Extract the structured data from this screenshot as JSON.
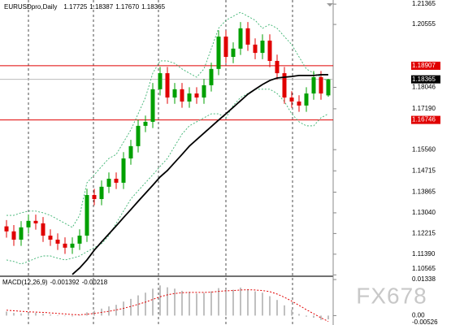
{
  "chart_data": [
    {
      "type": "candlestick",
      "title": "EURUSDpro,Daily",
      "header_low_label": "1.17670",
      "up_color": "#00a000",
      "down_color": "#e00000",
      "open": [
        1.125,
        1.123,
        1.1197,
        1.1246,
        1.1272,
        1.1262,
        1.1213,
        1.1197,
        1.1181,
        1.1165,
        1.1181,
        1.1213,
        1.1375,
        1.1359,
        1.1408,
        1.144,
        1.1424,
        1.1521,
        1.157,
        1.1651,
        1.1667,
        1.1797,
        1.1861,
        1.1764,
        1.1797,
        1.1748,
        1.178,
        1.1764,
        1.1813,
        1.1878,
        1.2007,
        1.1926,
        1.1959,
        1.204,
        1.1975,
        1.1942,
        1.1991,
        1.191,
        1.1861,
        1.1764,
        1.1748,
        1.1732,
        1.178,
        1.1845,
        1.17725
      ],
      "high": [
        1.1275,
        1.1255,
        1.1271,
        1.1297,
        1.1297,
        1.1287,
        1.1238,
        1.1222,
        1.1206,
        1.1206,
        1.1238,
        1.14,
        1.14,
        1.1433,
        1.1465,
        1.1465,
        1.1546,
        1.1595,
        1.1676,
        1.1692,
        1.1822,
        1.1886,
        1.1886,
        1.1822,
        1.1822,
        1.1805,
        1.1805,
        1.1838,
        1.1903,
        1.2032,
        1.2032,
        1.1984,
        1.2065,
        1.2065,
        1.2,
        1.2016,
        1.2016,
        1.1935,
        1.1886,
        1.1789,
        1.1773,
        1.1805,
        1.187,
        1.187,
        1.18387
      ],
      "low": [
        1.1205,
        1.1172,
        1.1172,
        1.1221,
        1.1237,
        1.1188,
        1.1172,
        1.1156,
        1.114,
        1.114,
        1.1156,
        1.1188,
        1.1334,
        1.1334,
        1.1383,
        1.1399,
        1.1399,
        1.1496,
        1.1545,
        1.1626,
        1.1642,
        1.1772,
        1.1739,
        1.1739,
        1.1723,
        1.1723,
        1.1739,
        1.1739,
        1.1788,
        1.1853,
        1.1901,
        1.1901,
        1.1934,
        1.195,
        1.1917,
        1.1917,
        1.1885,
        1.1836,
        1.1739,
        1.1723,
        1.1707,
        1.1707,
        1.1755,
        1.1755,
        1.1767
      ],
      "close": [
        1.123,
        1.1197,
        1.1246,
        1.1272,
        1.1262,
        1.1213,
        1.1197,
        1.1181,
        1.1165,
        1.1181,
        1.1213,
        1.1375,
        1.1359,
        1.1408,
        1.144,
        1.1424,
        1.1521,
        1.157,
        1.1651,
        1.1667,
        1.1797,
        1.1861,
        1.1764,
        1.1797,
        1.1748,
        1.178,
        1.1764,
        1.1813,
        1.1878,
        1.2007,
        1.1926,
        1.1959,
        1.204,
        1.1975,
        1.1942,
        1.1991,
        1.191,
        1.1861,
        1.1764,
        1.1748,
        1.1732,
        1.178,
        1.1845,
        1.178,
        1.18365
      ],
      "ma": [
        null,
        null,
        null,
        null,
        null,
        null,
        null,
        null,
        null,
        1.1058,
        1.1084,
        1.1116,
        1.1155,
        1.1188,
        1.122,
        1.1252,
        1.1285,
        1.1317,
        1.135,
        1.1382,
        1.1414,
        1.1447,
        1.1473,
        1.1505,
        1.1537,
        1.157,
        1.1596,
        1.1622,
        1.1648,
        1.1674,
        1.1699,
        1.1725,
        1.1751,
        1.1777,
        1.1797,
        1.1816,
        1.1832,
        1.1842,
        1.1845,
        1.1848,
        1.1852,
        1.1852,
        1.1852,
        1.1855,
        1.1855
      ],
      "ma_color": "#000000",
      "band_upper": [
        1.1294,
        1.1294,
        1.1304,
        1.1311,
        1.1311,
        1.1304,
        1.1294,
        1.1278,
        1.1262,
        1.1246,
        1.1294,
        1.1424,
        1.1456,
        1.1489,
        1.1521,
        1.1537,
        1.1586,
        1.1635,
        1.1699,
        1.1764,
        1.1861,
        1.191,
        1.191,
        1.19,
        1.1878,
        1.1861,
        1.1845,
        1.1878,
        1.1959,
        1.204,
        1.2072,
        1.2088,
        1.2104,
        1.2088,
        1.2072,
        1.204,
        1.2056,
        1.204,
        1.2007,
        1.1975,
        1.1926,
        1.1878,
        1.1861,
        1.1845,
        1.1829
      ],
      "band_lower": [
        1.1116,
        1.111,
        1.11,
        1.111,
        1.1123,
        1.1132,
        1.1132,
        1.1123,
        1.1116,
        1.1123,
        1.1132,
        1.1149,
        1.1165,
        1.1181,
        1.1213,
        1.1262,
        1.1311,
        1.1359,
        1.1392,
        1.1424,
        1.1456,
        1.1489,
        1.1521,
        1.157,
        1.1618,
        1.1651,
        1.1667,
        1.1683,
        1.1699,
        1.1699,
        1.1683,
        1.1732,
        1.1764,
        1.178,
        1.1797,
        1.1797,
        1.1797,
        1.178,
        1.1748,
        1.1699,
        1.1667,
        1.1651,
        1.1651,
        1.1683,
        1.1699
      ],
      "band_color": "#3cb371",
      "levels": [
        1.18907,
        1.16746
      ],
      "level_color": "#e00000",
      "ylim": [
        1.1051,
        1.2153
      ],
      "yticks": [
        1.21365,
        1.20555,
        1.18046,
        {
          "value": 1.1719,
          "label": "1.17190"
        },
        {
          "value": 1.1556,
          "label": "1.15560"
        },
        1.14715,
        1.13865,
        {
          "value": 1.1304,
          "label": "1.13040"
        },
        1.12215,
        {
          "value": 1.1139,
          "label": "1.11390"
        },
        1.10565
      ]
    },
    {
      "type": "macd",
      "title": "MACD(12,26,9)",
      "histogram": [
        0.0015,
        0.001,
        0.0008,
        0.0009,
        0.001,
        0.0007,
        0.0004,
        0.0001,
        -0.0002,
        -0.0003,
        -0.0001,
        0.0012,
        0.0018,
        0.0026,
        0.0034,
        0.004,
        0.0052,
        0.0062,
        0.0075,
        0.0085,
        0.01,
        0.0112,
        0.0105,
        0.01,
        0.0092,
        0.0088,
        0.0082,
        0.0084,
        0.009,
        0.0102,
        0.0098,
        0.0096,
        0.0104,
        0.0098,
        0.009,
        0.0085,
        0.0072,
        0.0058,
        0.0038,
        0.0022,
        0.0006,
        -0.0004,
        -0.0008,
        -0.0016,
        -0.001392
      ],
      "histogram_color": "#c0c0c0",
      "signal": [
        0.002,
        0.0018,
        0.0016,
        0.0014,
        0.0013,
        0.0012,
        0.001,
        0.0008,
        0.0006,
        0.0004,
        0.0003,
        0.0005,
        0.0008,
        0.0012,
        0.0016,
        0.0021,
        0.0027,
        0.0034,
        0.0042,
        0.005,
        0.006,
        0.007,
        0.0077,
        0.0082,
        0.0085,
        0.0086,
        0.0086,
        0.0086,
        0.0087,
        0.009,
        0.0092,
        0.0093,
        0.0095,
        0.0096,
        0.0095,
        0.0093,
        0.0089,
        0.008,
        0.0068,
        0.0054,
        0.0038,
        0.0022,
        0.0007,
        -0.0008,
        -0.00218
      ],
      "signal_color": "#e00000",
      "ylim": [
        -0.0053,
        0.0143
      ],
      "yticks": [
        0.01338,
        {
          "value": 0,
          "label": "0.00"
        },
        -0.00526
      ]
    }
  ],
  "watermark": "FX678"
}
